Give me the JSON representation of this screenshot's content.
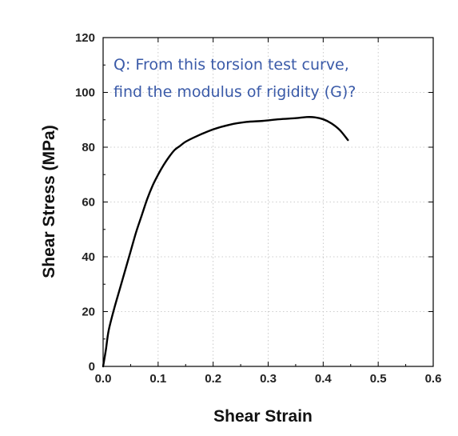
{
  "chart_data": {
    "type": "line",
    "xlabel": "Shear Strain",
    "ylabel": "Shear Stress (MPa)",
    "xlim": [
      0.0,
      0.6
    ],
    "ylim": [
      0,
      120
    ],
    "x_ticks": [
      "0.0",
      "0.1",
      "0.2",
      "0.3",
      "0.4",
      "0.5",
      "0.6"
    ],
    "y_ticks": [
      "0",
      "20",
      "40",
      "60",
      "80",
      "100",
      "120"
    ],
    "grid": true,
    "annotation": [
      "Q: From this torsion test curve,",
      "find the modulus of rigidity (G)?"
    ],
    "series": [
      {
        "x": [
          0.0,
          0.005,
          0.01,
          0.02,
          0.03,
          0.04,
          0.05,
          0.06,
          0.07,
          0.08,
          0.09,
          0.1,
          0.11,
          0.12,
          0.13,
          0.14,
          0.15,
          0.17,
          0.2,
          0.23,
          0.26,
          0.29,
          0.32,
          0.35,
          0.37,
          0.385,
          0.4,
          0.415,
          0.43,
          0.445
        ],
        "y": [
          0,
          6,
          13,
          21,
          28,
          35,
          42,
          49,
          55,
          61,
          66,
          70,
          73.5,
          76.5,
          79,
          80.5,
          82,
          84,
          86.5,
          88.2,
          89.2,
          89.6,
          90.2,
          90.6,
          91,
          90.9,
          90.2,
          88.7,
          86.3,
          82.6
        ]
      }
    ],
    "line_color": "#000000"
  }
}
